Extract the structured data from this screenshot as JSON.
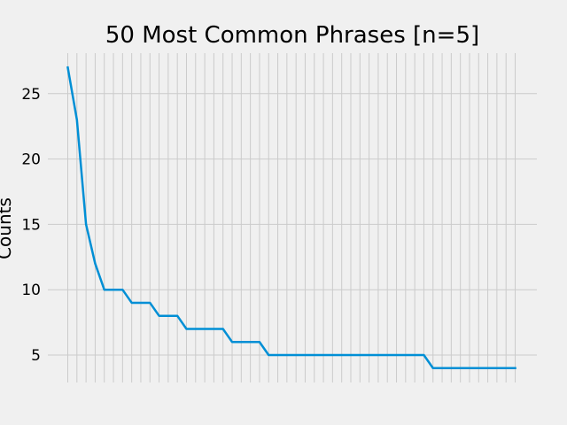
{
  "chart_data": {
    "type": "line",
    "title": "50 Most Common Phrases [n=5]",
    "xlabel": "",
    "ylabel": "Counts",
    "ylim": [
      2.9,
      28.1
    ],
    "yticks": [
      5,
      10,
      15,
      20,
      25
    ],
    "grid": true,
    "line_color": "#008fd5",
    "grid_color": "#cbcbcb",
    "background": "#f0f0f0",
    "series": [
      {
        "values": [
          27,
          23,
          15,
          12,
          10,
          10,
          10,
          9,
          9,
          9,
          8,
          8,
          8,
          7,
          7,
          7,
          7,
          7,
          6,
          6,
          6,
          6,
          5,
          5,
          5,
          5,
          5,
          5,
          5,
          5,
          5,
          5,
          5,
          5,
          5,
          5,
          5,
          5,
          5,
          5,
          4,
          4,
          4,
          4,
          4,
          4,
          4,
          4,
          4,
          4
        ]
      }
    ]
  }
}
